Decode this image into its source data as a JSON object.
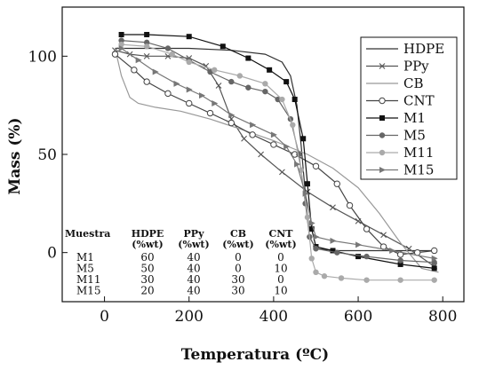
{
  "chart_data": {
    "type": "line",
    "title": "",
    "xlabel": "Temperatura (ºC)",
    "ylabel": "Mass (%)",
    "xlim": [
      -100,
      850
    ],
    "ylim": [
      -25,
      125
    ],
    "xticks": [
      0,
      200,
      400,
      600,
      800
    ],
    "yticks": [
      0,
      50,
      100
    ],
    "legend_position": "top-right",
    "series": [
      {
        "name": "HDPE",
        "color": "#333333",
        "marker": "none",
        "x": [
          25,
          100,
          200,
          300,
          380,
          420,
          440,
          455,
          465,
          475,
          485,
          500,
          550,
          650,
          780
        ],
        "y": [
          104,
          104,
          104,
          103,
          101,
          97,
          90,
          75,
          55,
          30,
          8,
          2,
          1,
          1,
          1
        ]
      },
      {
        "name": "PPy",
        "color": "#555555",
        "marker": "x",
        "x": [
          25,
          60,
          100,
          150,
          200,
          240,
          270,
          300,
          330,
          370,
          420,
          480,
          540,
          600,
          660,
          720,
          780
        ],
        "y": [
          103,
          101,
          100,
          100,
          99,
          95,
          85,
          68,
          58,
          50,
          41,
          31,
          23,
          16,
          9,
          2,
          -7
        ]
      },
      {
        "name": "CB",
        "color": "#999999",
        "marker": "none",
        "x": [
          25,
          40,
          60,
          80,
          120,
          180,
          250,
          320,
          400,
          480,
          540,
          600,
          650,
          700,
          750,
          790
        ],
        "y": [
          104,
          90,
          79,
          76,
          74,
          72,
          68,
          63,
          57,
          50,
          43,
          33,
          20,
          5,
          -8,
          -10
        ]
      },
      {
        "name": "CNT",
        "color": "#444444",
        "marker": "circle-open",
        "x": [
          25,
          70,
          100,
          150,
          200,
          250,
          300,
          350,
          400,
          450,
          500,
          550,
          580,
          620,
          660,
          700,
          740,
          780
        ],
        "y": [
          101,
          93,
          87,
          81,
          76,
          71,
          66,
          60,
          55,
          50,
          44,
          35,
          24,
          12,
          3,
          -1,
          0,
          1
        ]
      },
      {
        "name": "M1",
        "color": "#111111",
        "marker": "square",
        "x": [
          40,
          100,
          200,
          280,
          340,
          390,
          430,
          450,
          470,
          480,
          490,
          500,
          540,
          600,
          700,
          780
        ],
        "y": [
          111,
          111,
          110,
          105,
          99,
          93,
          87,
          78,
          58,
          35,
          12,
          3,
          1,
          -2,
          -6,
          -8
        ]
      },
      {
        "name": "M5",
        "color": "#666666",
        "marker": "circle-filled",
        "x": [
          40,
          100,
          150,
          200,
          250,
          300,
          340,
          380,
          410,
          440,
          460,
          475,
          485,
          500,
          550,
          620,
          700,
          780
        ],
        "y": [
          108,
          107,
          104,
          98,
          92,
          87,
          84,
          82,
          78,
          68,
          50,
          25,
          8,
          2,
          0,
          -2,
          -4,
          -5
        ]
      },
      {
        "name": "M11",
        "color": "#aaaaaa",
        "marker": "circle-filled",
        "x": [
          40,
          100,
          160,
          200,
          260,
          320,
          380,
          420,
          445,
          465,
          480,
          490,
          500,
          520,
          560,
          620,
          700,
          780
        ],
        "y": [
          106,
          105,
          101,
          97,
          93,
          90,
          86,
          78,
          65,
          42,
          18,
          -3,
          -10,
          -12,
          -13,
          -14,
          -14,
          -14
        ]
      },
      {
        "name": "M15",
        "color": "#777777",
        "marker": "triangle-right",
        "x": [
          40,
          80,
          120,
          170,
          200,
          230,
          260,
          300,
          350,
          400,
          430,
          455,
          475,
          490,
          500,
          540,
          600,
          680,
          780
        ],
        "y": [
          104,
          98,
          92,
          86,
          83,
          80,
          76,
          70,
          65,
          60,
          54,
          45,
          30,
          15,
          8,
          6,
          4,
          1,
          -3
        ]
      }
    ],
    "inset_table": {
      "headers": [
        [
          "Muestra",
          ""
        ],
        [
          "HDPE",
          "(%wt)"
        ],
        [
          "PPy",
          "(%wt)"
        ],
        [
          "CB",
          "(%wt)"
        ],
        [
          "CNT",
          "(%wt)"
        ]
      ],
      "rows": [
        [
          "M1",
          "60",
          "40",
          "0",
          "0"
        ],
        [
          "M5",
          "50",
          "40",
          "0",
          "10"
        ],
        [
          "M11",
          "30",
          "40",
          "30",
          "0"
        ],
        [
          "M15",
          "20",
          "40",
          "30",
          "10"
        ]
      ]
    }
  }
}
